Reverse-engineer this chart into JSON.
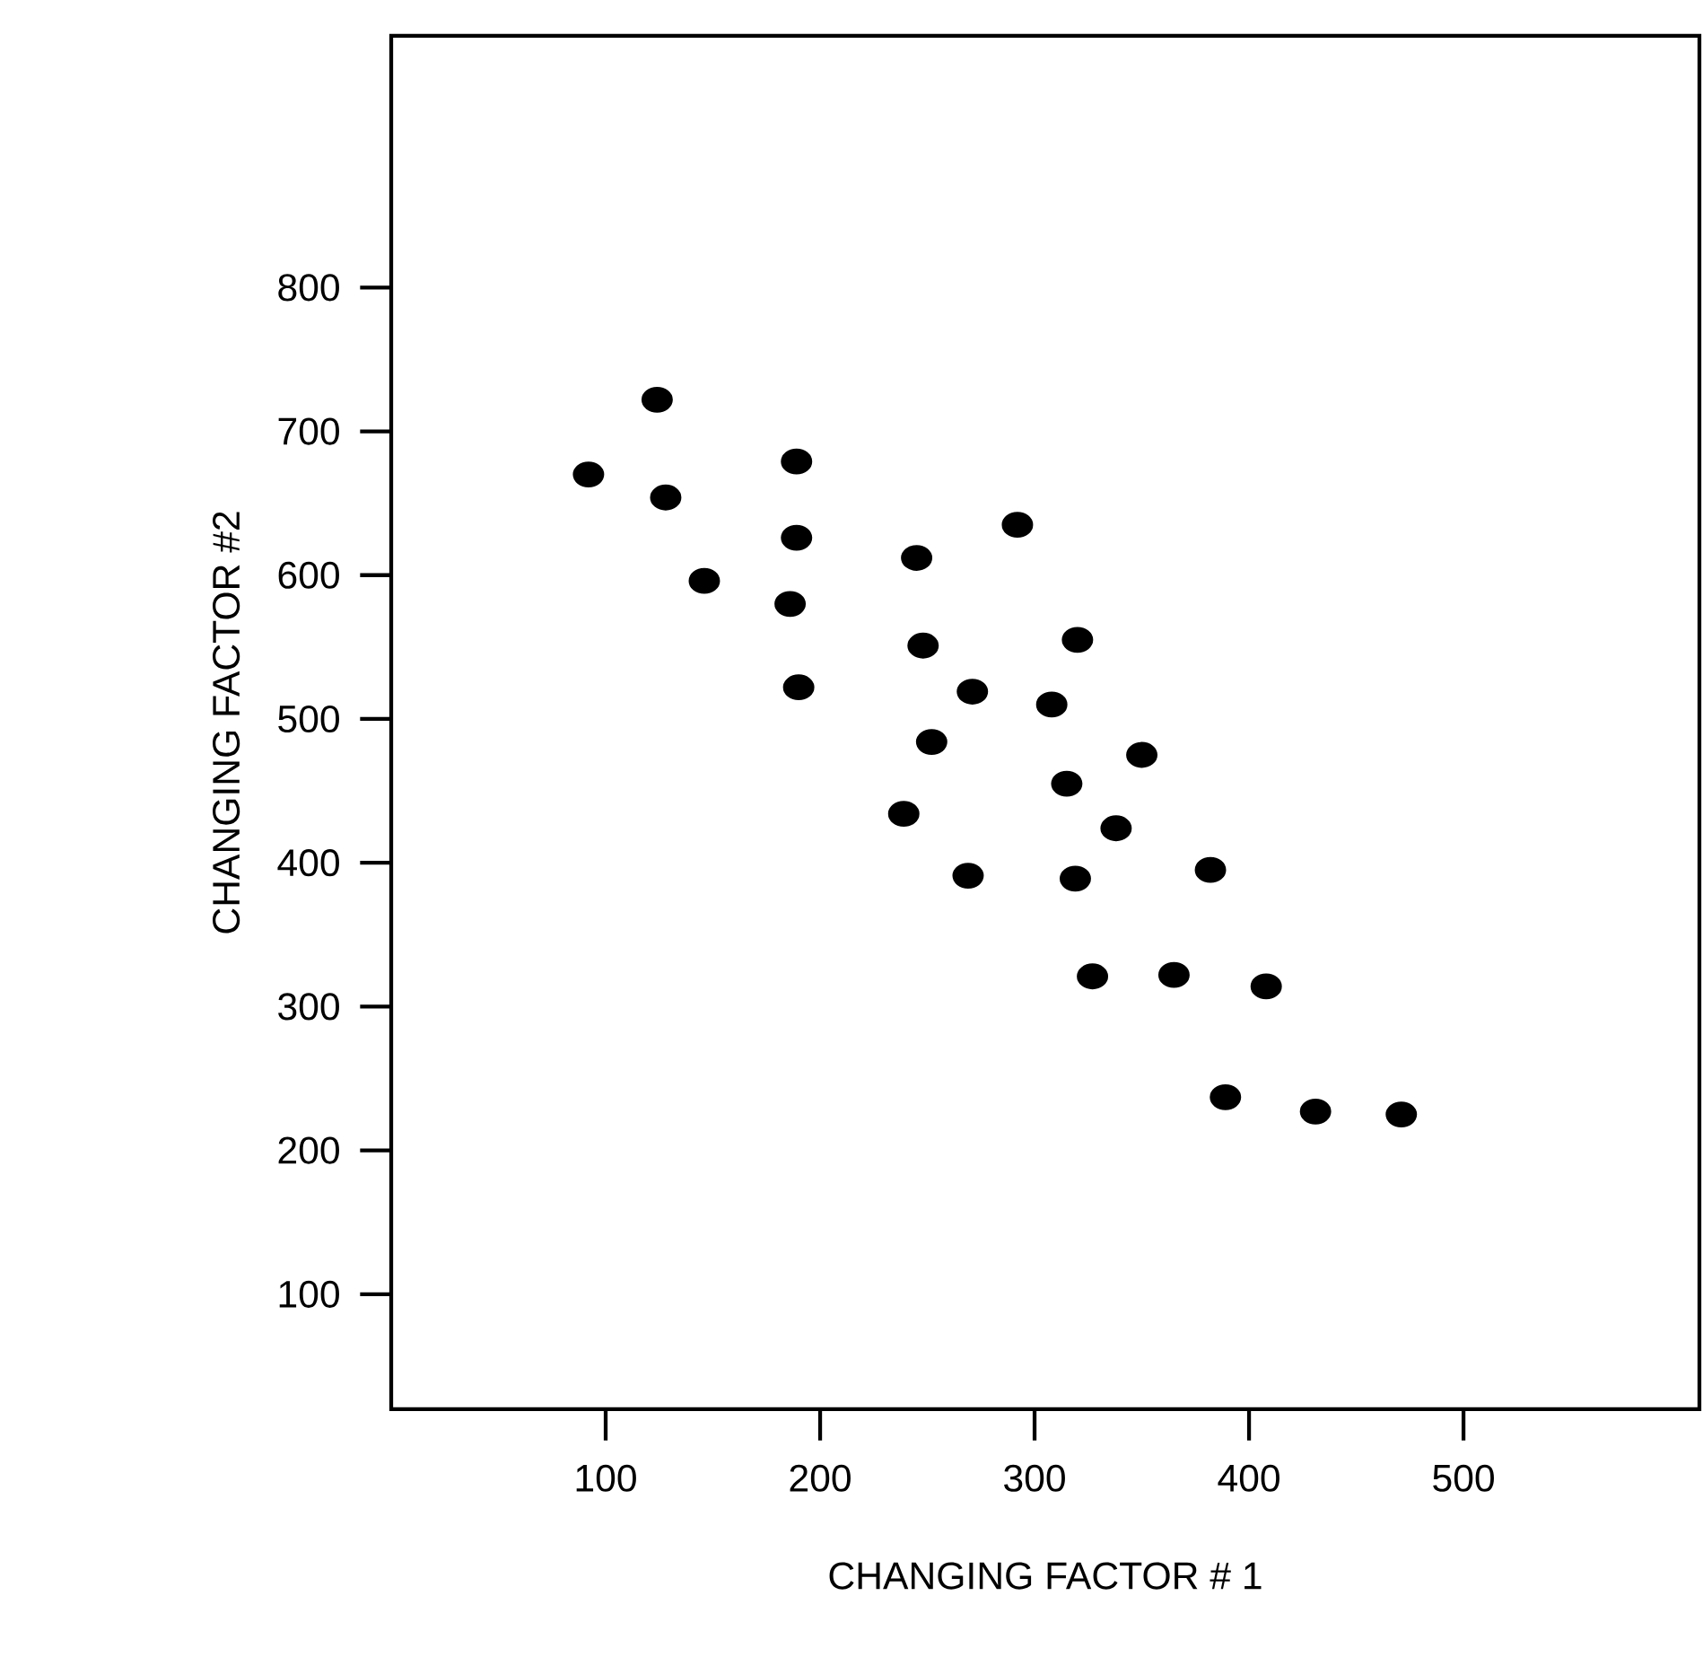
{
  "chart_data": {
    "type": "scatter",
    "xlabel": "CHANGING FACTOR # 1",
    "ylabel": "CHANGING FACTOR #2",
    "xlim": [
      0,
      610
    ],
    "ylim": [
      20,
      975
    ],
    "xticks": [
      100,
      200,
      300,
      400,
      500
    ],
    "yticks": [
      100,
      200,
      300,
      400,
      500,
      600,
      700,
      800
    ],
    "color": "#000000",
    "grid": false,
    "x": [
      92,
      124,
      128,
      146,
      189,
      189,
      186,
      190,
      245,
      248,
      252,
      239,
      271,
      269,
      292,
      308,
      320,
      315,
      319,
      327,
      350,
      338,
      382,
      365,
      408,
      389,
      431,
      471
    ],
    "values": [
      670,
      722,
      654,
      596,
      679,
      626,
      580,
      522,
      612,
      551,
      484,
      434,
      519,
      391,
      635,
      510,
      555,
      455,
      389,
      321,
      475,
      424,
      395,
      322,
      314,
      237,
      227,
      225
    ]
  }
}
